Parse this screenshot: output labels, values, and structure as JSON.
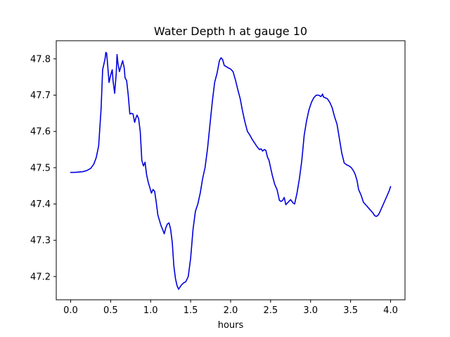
{
  "chart_data": {
    "type": "line",
    "title": "Water Depth h at gauge 10",
    "xlabel": "hours",
    "ylabel": "",
    "xlim": [
      -0.18,
      4.18
    ],
    "ylim": [
      47.136,
      47.85
    ],
    "grid": false,
    "xticks": [
      0.0,
      0.5,
      1.0,
      1.5,
      2.0,
      2.5,
      3.0,
      3.5,
      4.0
    ],
    "xtick_labels": [
      "0.0",
      "0.5",
      "1.0",
      "1.5",
      "2.0",
      "2.5",
      "3.0",
      "3.5",
      "4.0"
    ],
    "yticks": [
      47.2,
      47.3,
      47.4,
      47.5,
      47.6,
      47.7,
      47.8
    ],
    "ytick_labels": [
      "47.2",
      "47.3",
      "47.4",
      "47.5",
      "47.6",
      "47.7",
      "47.8"
    ],
    "series": [
      {
        "name": "",
        "color": "#0000dd",
        "x": [
          0.0,
          0.05,
          0.1,
          0.15,
          0.2,
          0.25,
          0.29,
          0.32,
          0.35,
          0.38,
          0.4,
          0.43,
          0.44,
          0.45,
          0.46,
          0.48,
          0.5,
          0.52,
          0.53,
          0.55,
          0.57,
          0.58,
          0.59,
          0.61,
          0.63,
          0.65,
          0.67,
          0.68,
          0.7,
          0.72,
          0.74,
          0.76,
          0.78,
          0.8,
          0.82,
          0.83,
          0.85,
          0.87,
          0.89,
          0.91,
          0.93,
          0.95,
          0.97,
          0.99,
          1.01,
          1.03,
          1.05,
          1.07,
          1.09,
          1.11,
          1.13,
          1.15,
          1.17,
          1.19,
          1.21,
          1.23,
          1.25,
          1.27,
          1.29,
          1.31,
          1.33,
          1.35,
          1.37,
          1.39,
          1.41,
          1.44,
          1.47,
          1.5,
          1.53,
          1.56,
          1.59,
          1.62,
          1.65,
          1.68,
          1.71,
          1.74,
          1.77,
          1.8,
          1.83,
          1.86,
          1.88,
          1.9,
          1.92,
          1.95,
          1.98,
          2.0,
          2.03,
          2.06,
          2.09,
          2.12,
          2.15,
          2.18,
          2.21,
          2.24,
          2.27,
          2.3,
          2.33,
          2.36,
          2.38,
          2.4,
          2.42,
          2.44,
          2.46,
          2.48,
          2.5,
          2.52,
          2.55,
          2.58,
          2.61,
          2.63,
          2.65,
          2.67,
          2.69,
          2.72,
          2.75,
          2.78,
          2.8,
          2.83,
          2.86,
          2.89,
          2.92,
          2.95,
          2.98,
          3.01,
          3.04,
          3.07,
          3.1,
          3.13,
          3.15,
          3.16,
          3.18,
          3.21,
          3.24,
          3.27,
          3.3,
          3.33,
          3.36,
          3.39,
          3.42,
          3.45,
          3.48,
          3.51,
          3.54,
          3.56,
          3.57,
          3.58,
          3.6,
          3.63,
          3.66,
          3.7,
          3.74,
          3.78,
          3.8,
          3.82,
          3.84,
          3.86,
          3.88,
          3.9,
          3.93,
          3.96,
          3.98,
          4.0
        ],
        "y": [
          47.487,
          47.487,
          47.488,
          47.489,
          47.492,
          47.498,
          47.51,
          47.528,
          47.56,
          47.66,
          47.77,
          47.8,
          47.818,
          47.815,
          47.79,
          47.735,
          47.755,
          47.77,
          47.74,
          47.705,
          47.76,
          47.812,
          47.79,
          47.765,
          47.78,
          47.795,
          47.775,
          47.748,
          47.74,
          47.7,
          47.648,
          47.65,
          47.648,
          47.625,
          47.64,
          47.645,
          47.635,
          47.6,
          47.52,
          47.505,
          47.515,
          47.48,
          47.46,
          47.445,
          47.43,
          47.44,
          47.435,
          47.405,
          47.37,
          47.355,
          47.34,
          47.33,
          47.318,
          47.335,
          47.345,
          47.348,
          47.33,
          47.295,
          47.23,
          47.195,
          47.175,
          47.165,
          47.172,
          47.178,
          47.182,
          47.186,
          47.2,
          47.25,
          47.33,
          47.38,
          47.4,
          47.43,
          47.47,
          47.5,
          47.55,
          47.615,
          47.68,
          47.735,
          47.76,
          47.795,
          47.803,
          47.798,
          47.782,
          47.778,
          47.774,
          47.772,
          47.765,
          47.742,
          47.715,
          47.69,
          47.655,
          47.625,
          47.6,
          47.59,
          47.578,
          47.568,
          47.558,
          47.55,
          47.552,
          47.546,
          47.55,
          47.548,
          47.53,
          47.52,
          47.5,
          47.48,
          47.455,
          47.44,
          47.41,
          47.407,
          47.41,
          47.418,
          47.398,
          47.405,
          47.412,
          47.403,
          47.4,
          47.43,
          47.47,
          47.52,
          47.59,
          47.63,
          47.66,
          47.68,
          47.693,
          47.7,
          47.7,
          47.696,
          47.703,
          47.695,
          47.693,
          47.69,
          47.68,
          47.665,
          47.64,
          47.62,
          47.58,
          47.54,
          47.513,
          47.508,
          47.505,
          47.5,
          47.49,
          47.48,
          47.472,
          47.465,
          47.44,
          47.425,
          47.405,
          47.395,
          47.385,
          47.375,
          47.368,
          47.366,
          47.368,
          47.375,
          47.385,
          47.395,
          47.41,
          47.425,
          47.435,
          47.448
        ]
      }
    ]
  }
}
